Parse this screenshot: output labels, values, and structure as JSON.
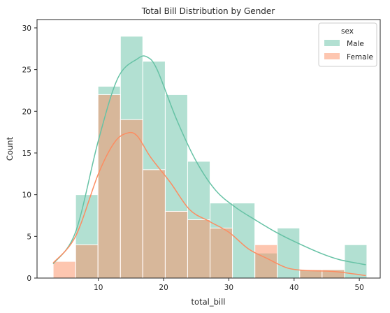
{
  "chart_data": {
    "type": "histogram",
    "title": "Total Bill Distribution by Gender",
    "xlabel": "total_bill",
    "ylabel": "Count",
    "xlim": [
      0.6,
      53.2
    ],
    "ylim": [
      0,
      31
    ],
    "xticks": [
      10,
      20,
      30,
      40,
      50
    ],
    "yticks": [
      0,
      5,
      10,
      15,
      20,
      25,
      30
    ],
    "grid": false,
    "legend": {
      "title": "sex",
      "placement": "top-right"
    },
    "bin_edges": [
      3.07,
      6.51,
      9.94,
      13.38,
      16.81,
      20.25,
      23.68,
      27.12,
      30.55,
      33.99,
      37.42,
      40.86,
      44.29,
      47.73,
      51.16
    ],
    "series": [
      {
        "name": "Male",
        "color": "#66c2a5",
        "counts": [
          0,
          10,
          23,
          29,
          26,
          22,
          14,
          9,
          9,
          3,
          6,
          1,
          1,
          4
        ],
        "kde_x": [
          3.07,
          6.5,
          10,
          13,
          16,
          17.5,
          19,
          22,
          25,
          28,
          31,
          34,
          37,
          40,
          44,
          47,
          51
        ],
        "kde_y": [
          1.7,
          5.5,
          16.5,
          24,
          26.3,
          26.5,
          25,
          19,
          14,
          10.5,
          8.5,
          7,
          5.6,
          4.4,
          3,
          2.2,
          1.6
        ]
      },
      {
        "name": "Female",
        "color": "#fc8d62",
        "counts": [
          2,
          4,
          22,
          19,
          13,
          8,
          7,
          6,
          0,
          4,
          0,
          1,
          1,
          0
        ],
        "kde_x": [
          3.07,
          6.5,
          10,
          12.5,
          14.5,
          16,
          18,
          21,
          24,
          27,
          30,
          33,
          36,
          39,
          42,
          46,
          51
        ],
        "kde_y": [
          1.8,
          5,
          12.5,
          16.3,
          17.4,
          17,
          14.5,
          11.5,
          8.2,
          6.8,
          5.5,
          3.5,
          2.3,
          1.2,
          0.9,
          0.8,
          0.3
        ]
      }
    ]
  }
}
